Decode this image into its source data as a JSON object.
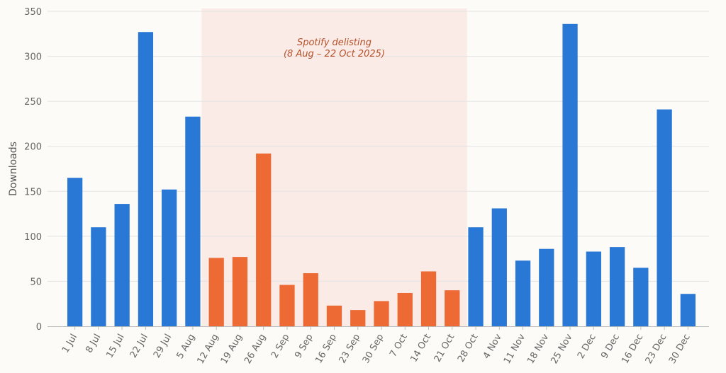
{
  "chart_data": {
    "type": "bar",
    "title": "",
    "xlabel": "",
    "ylabel": "Downloads",
    "ylim": [
      0,
      350
    ],
    "yticks": [
      0,
      50,
      100,
      150,
      200,
      250,
      300,
      350
    ],
    "grid": "horizontal",
    "categories": [
      "1 Jul",
      "8 Jul",
      "15 Jul",
      "22 Jul",
      "29 Jul",
      "5 Aug",
      "12 Aug",
      "19 Aug",
      "26 Aug",
      "2 Sep",
      "9 Sep",
      "16 Sep",
      "23 Sep",
      "30 Sep",
      "7 Oct",
      "14 Oct",
      "21 Oct",
      "28 Oct",
      "4 Nov",
      "11 Nov",
      "18 Nov",
      "25 Nov",
      "2 Dec",
      "9 Dec",
      "16 Dec",
      "23 Dec",
      "30 Dec"
    ],
    "values": [
      165,
      110,
      136,
      327,
      152,
      233,
      76,
      77,
      192,
      46,
      59,
      23,
      18,
      28,
      37,
      61,
      40,
      110,
      131,
      73,
      86,
      336,
      83,
      88,
      65,
      241,
      36
    ],
    "highlighted": [
      false,
      false,
      false,
      false,
      false,
      false,
      true,
      true,
      true,
      true,
      true,
      true,
      true,
      true,
      true,
      true,
      true,
      false,
      false,
      false,
      false,
      false,
      false,
      false,
      false,
      false,
      false
    ],
    "colors": {
      "normal": "#2a78d6",
      "highlighted": "#ed6a35",
      "band": "#f9e5e0",
      "annotation": "#b5502a",
      "grid": "#e3e3e3",
      "axis": "#bbbbbb"
    },
    "annotation": {
      "line1": "Spotify delisting",
      "line2": "(8 Aug – 22 Oct 2025)",
      "start_category": "12 Aug",
      "end_category": "21 Oct"
    }
  }
}
